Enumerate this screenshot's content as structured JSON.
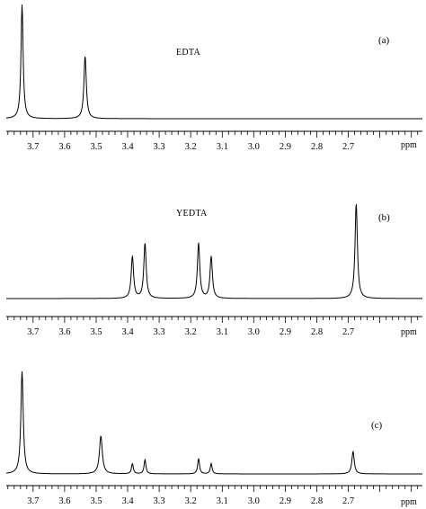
{
  "chart_data": [
    {
      "type": "line",
      "panel_label": "(a)",
      "title": "EDTA",
      "xlabel": "ppm",
      "x_reversed": true,
      "xlim": [
        3.785,
        2.465
      ],
      "tick_labels": [
        "3.7",
        "3.6",
        "3.5",
        "3.4",
        "3.3",
        "3.2",
        "3.1",
        "3.0",
        "2.9",
        "2.8",
        "2.7"
      ],
      "peaks": [
        {
          "ppm": 3.735,
          "height": 1.0,
          "width": 0.004
        },
        {
          "ppm": 3.535,
          "height": 0.55,
          "width": 0.0045
        }
      ]
    },
    {
      "type": "line",
      "panel_label": "(b)",
      "title": "YEDTA",
      "xlabel": "ppm",
      "x_reversed": true,
      "xlim": [
        3.785,
        2.465
      ],
      "tick_labels": [
        "3.7",
        "3.6",
        "3.5",
        "3.4",
        "3.3",
        "3.2",
        "3.1",
        "3.0",
        "2.9",
        "2.8",
        "2.7"
      ],
      "peaks": [
        {
          "ppm": 3.385,
          "height": 0.44,
          "width": 0.0045
        },
        {
          "ppm": 3.345,
          "height": 0.58,
          "width": 0.0045
        },
        {
          "ppm": 3.175,
          "height": 0.58,
          "width": 0.0045
        },
        {
          "ppm": 3.135,
          "height": 0.44,
          "width": 0.0045
        },
        {
          "ppm": 2.675,
          "height": 1.0,
          "width": 0.0045
        }
      ]
    },
    {
      "type": "line",
      "panel_label": "(c)",
      "title": "",
      "xlabel": "ppm",
      "x_reversed": true,
      "xlim": [
        3.785,
        2.465
      ],
      "tick_labels": [
        "3.7",
        "3.6",
        "3.5",
        "3.4",
        "3.3",
        "3.2",
        "3.1",
        "3.0",
        "2.9",
        "2.8",
        "2.7"
      ],
      "peaks": [
        {
          "ppm": 3.735,
          "height": 1.0,
          "width": 0.0045
        },
        {
          "ppm": 3.485,
          "height": 0.37,
          "width": 0.0055
        },
        {
          "ppm": 3.385,
          "height": 0.1,
          "width": 0.0035
        },
        {
          "ppm": 3.345,
          "height": 0.14,
          "width": 0.0035
        },
        {
          "ppm": 3.175,
          "height": 0.15,
          "width": 0.0035
        },
        {
          "ppm": 3.135,
          "height": 0.1,
          "width": 0.0035
        },
        {
          "ppm": 2.685,
          "height": 0.22,
          "width": 0.0045
        }
      ]
    }
  ]
}
